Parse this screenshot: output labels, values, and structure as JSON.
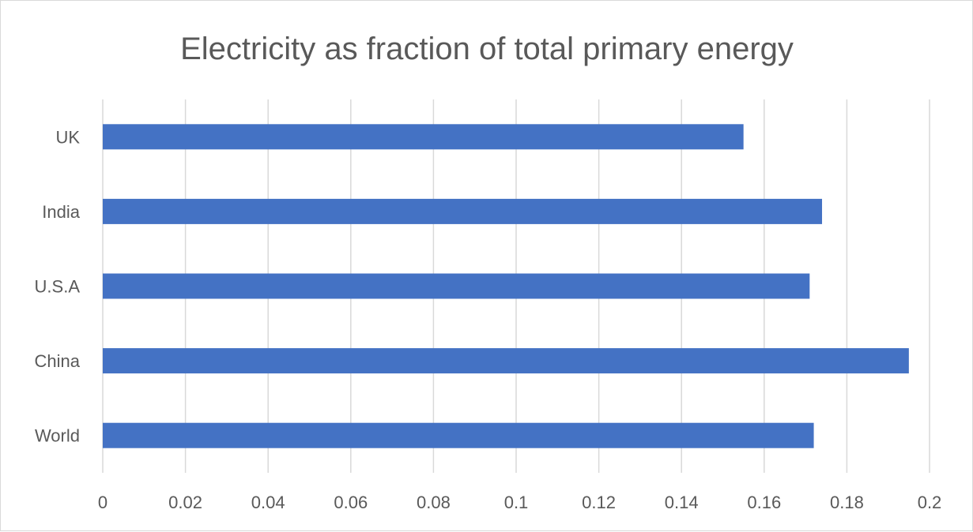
{
  "chart_data": {
    "type": "bar",
    "orientation": "horizontal",
    "title": "Electricity as fraction of total primary energy",
    "xlabel": "",
    "ylabel": "",
    "categories": [
      "UK",
      "India",
      "U.S.A",
      "China",
      "World"
    ],
    "values": [
      0.155,
      0.174,
      0.171,
      0.195,
      0.172
    ],
    "xlim": [
      0,
      0.2
    ],
    "x_ticks": [
      "0",
      "0.02",
      "0.04",
      "0.06",
      "0.08",
      "0.1",
      "0.12",
      "0.14",
      "0.16",
      "0.18",
      "0.2"
    ],
    "grid": "vertical",
    "legend": "none",
    "bar_color": "#4472c4"
  }
}
